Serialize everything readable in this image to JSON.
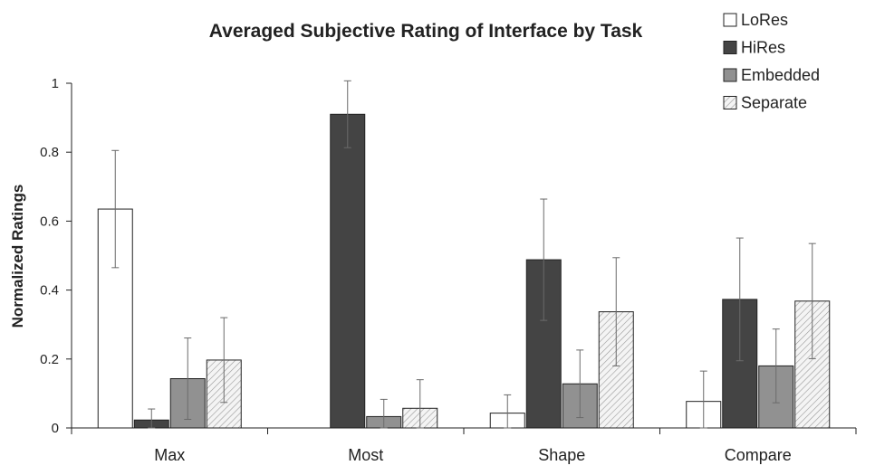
{
  "chart_data": {
    "type": "bar",
    "title": "Averaged Subjective Rating of Interface by Task",
    "xlabel": "",
    "ylabel": "Normalized Ratings",
    "ylim": [
      0,
      1
    ],
    "yticks": [
      "0",
      "0.2",
      "0.4",
      "0.6",
      "0.8",
      "1"
    ],
    "grid": false,
    "legend_position": "top-right",
    "categories": [
      "Max",
      "Most",
      "Shape",
      "Compare"
    ],
    "series": [
      {
        "name": "LoRes",
        "color": "#ffffff",
        "pattern": "none",
        "values": [
          0.635,
          0.0,
          0.043,
          0.077
        ],
        "errors": [
          0.17,
          0.0,
          0.053,
          0.088
        ]
      },
      {
        "name": "HiRes",
        "color": "#444444",
        "pattern": "none",
        "values": [
          0.023,
          0.91,
          0.488,
          0.373
        ],
        "errors": [
          0.032,
          0.097,
          0.176,
          0.178
        ]
      },
      {
        "name": "Embedded",
        "color": "#919191",
        "pattern": "none",
        "values": [
          0.143,
          0.033,
          0.128,
          0.18
        ],
        "errors": [
          0.118,
          0.05,
          0.098,
          0.107
        ]
      },
      {
        "name": "Separate",
        "color": "#f2f2f2",
        "pattern": "diagonal-hatch",
        "values": [
          0.197,
          0.057,
          0.337,
          0.368
        ],
        "errors": [
          0.123,
          0.083,
          0.157,
          0.167
        ]
      }
    ]
  }
}
